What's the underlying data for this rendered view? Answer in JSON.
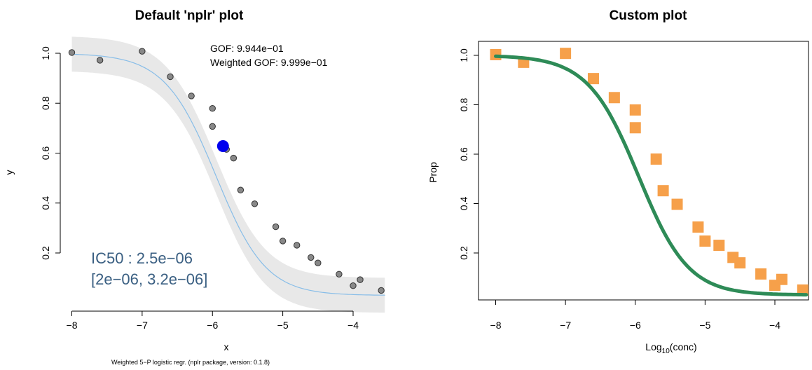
{
  "chart_data": [
    {
      "type": "scatter",
      "title": "Default 'nplr' plot",
      "xlabel": "x",
      "ylabel": "y",
      "xlim": [
        -8.1,
        -3.55
      ],
      "ylim": [
        0.0,
        1.07
      ],
      "xticks": [
        -8,
        -7,
        -6,
        -5,
        -4
      ],
      "xtick_labels": [
        "−8",
        "−7",
        "−6",
        "−5",
        "−4"
      ],
      "yticks": [
        0.2,
        0.4,
        0.6,
        0.8,
        1.0
      ],
      "ytick_labels": [
        "0.2",
        "0.4",
        "0.6",
        "0.8",
        "1.0"
      ],
      "grid": false,
      "points": {
        "x": [
          -8.0,
          -7.6,
          -7.0,
          -6.6,
          -6.3,
          -6.0,
          -6.0,
          -5.8,
          -5.7,
          -5.6,
          -5.4,
          -5.1,
          -5.0,
          -4.8,
          -4.6,
          -4.5,
          -4.2,
          -4.0,
          -3.9,
          -3.6
        ],
        "y": [
          1.003,
          0.972,
          1.008,
          0.906,
          0.829,
          0.779,
          0.707,
          0.615,
          0.58,
          0.452,
          0.397,
          0.305,
          0.248,
          0.231,
          0.182,
          0.16,
          0.115,
          0.069,
          0.093,
          0.05
        ]
      },
      "curve_params": {
        "bottom": 0.03,
        "top": 1.0,
        "xmid": -5.92,
        "scal": -1.18,
        "s": 1.08
      },
      "ci_band_halfwidth": 0.07,
      "ic50_point": {
        "x": -5.85,
        "y": 0.628
      },
      "annotations": {
        "gof": "GOF: 9.944e−01",
        "weighted_gof": "Weighted GOF: 9.999e−01",
        "ic50": "IC50 : 2.5e−06",
        "ic50_ci": "[2e−06, 3.2e−06]"
      },
      "subtitle": "Weighted 5−P logistic regr. (nplr package, version: 0.1.8)",
      "colors": {
        "band": "#e8e8e8",
        "curve": "#87bde8",
        "points": "#888888",
        "ic50": "#0000ee",
        "ic50_text": "#3a5f82"
      }
    },
    {
      "type": "scatter",
      "title": "Custom plot",
      "xlabel": "Log10(conc)",
      "xlabel_base": "Log",
      "xlabel_sub": "10",
      "xlabel_rest": "(conc)",
      "ylabel": "Prop",
      "xlim": [
        -8.1,
        -3.55
      ],
      "ylim": [
        0.0,
        1.07
      ],
      "xticks": [
        -8,
        -7,
        -6,
        -5,
        -4
      ],
      "xtick_labels": [
        "−8",
        "−7",
        "−6",
        "−5",
        "−4"
      ],
      "yticks": [
        0.2,
        0.4,
        0.6,
        0.8,
        1.0
      ],
      "ytick_labels": [
        "0.2",
        "0.4",
        "0.6",
        "0.8",
        "1.0"
      ],
      "grid": false,
      "points": {
        "x": [
          -8.0,
          -7.6,
          -7.0,
          -6.6,
          -6.3,
          -6.0,
          -6.0,
          -5.7,
          -5.6,
          -5.4,
          -5.1,
          -5.0,
          -4.8,
          -4.6,
          -4.5,
          -4.2,
          -4.0,
          -3.9,
          -3.6
        ],
        "y": [
          1.003,
          0.972,
          1.008,
          0.906,
          0.829,
          0.779,
          0.707,
          0.58,
          0.452,
          0.397,
          0.305,
          0.248,
          0.231,
          0.182,
          0.16,
          0.115,
          0.069,
          0.093,
          0.05
        ]
      },
      "curve_params": {
        "bottom": 0.03,
        "top": 1.0,
        "xmid": -5.92,
        "scal": -1.18,
        "s": 1.08
      },
      "colors": {
        "points": "#f6a04a",
        "curve": "#2e8b57"
      }
    }
  ]
}
